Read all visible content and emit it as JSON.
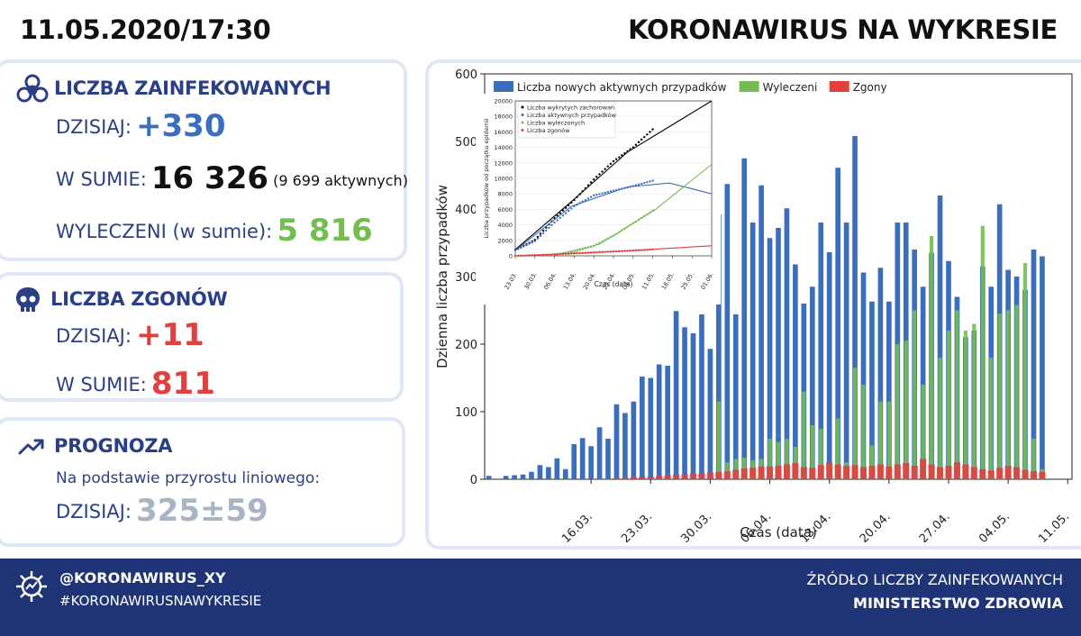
{
  "header": {
    "date": "11.05.2020/17:30",
    "title": "KORONAWIRUS NA WYKRESIE"
  },
  "infected": {
    "title": "LICZBA ZAINFEKOWANYCH",
    "today_label": "DZISIAJ:",
    "today_value": "+330",
    "total_label": "W SUMIE:",
    "total_value": "16 326",
    "active_note": "(9 699 aktywnych)",
    "recovered_label": "WYLECZENI (w sumie):",
    "recovered_value": "5 816"
  },
  "deaths": {
    "title": "LICZBA ZGONÓW",
    "today_label": "DZISIAJ:",
    "today_value": "+11",
    "total_label": "W SUMIE:",
    "total_value": "811"
  },
  "forecast": {
    "title": "PROGNOZA",
    "subtitle": "Na podstawie przyrostu liniowego:",
    "today_label": "DZISIAJ:",
    "today_value": "325±59"
  },
  "footer": {
    "handle": "@KORONAWIRUS_XY",
    "hashtag": "#KORONAWIRUSNAWYKRESIE",
    "source_label": "ŹRÓDŁO LICZBY ZAINFEKOWANYCH",
    "source_name": "MINISTERSTWO ZDROWIA"
  },
  "colors": {
    "navy": "#2a3f86",
    "blue": "#3c6ebe",
    "green": "#74bd52",
    "red": "#e0413e",
    "grey": "#a8b5c6",
    "footer_bg": "#1f3476",
    "card_border": "#dfe7f6"
  },
  "icons": {
    "infected": "biohazard-icon",
    "deaths": "skull-icon",
    "forecast": "trend-up-icon",
    "footer": "virus-icon"
  },
  "chart_data": [
    {
      "type": "bar",
      "xlabel": "Czas (data)",
      "ylabel": "Dzienna liczba przypadków",
      "ylim": [
        0,
        600
      ],
      "yticks": [
        0,
        100,
        200,
        300,
        400,
        500,
        600
      ],
      "x_start": "2020-03-04",
      "x_end": "2020-05-11",
      "xticks": [
        "16.03.",
        "23.03.",
        "30.03.",
        "06.04.",
        "13.04.",
        "20.04.",
        "27.04.",
        "04.05.",
        "11.05."
      ],
      "legend_position": "top",
      "series": [
        {
          "name": "Liczba nowych aktywnych przypadków",
          "color": "#3c6ebe",
          "values": [
            5,
            0,
            5,
            6,
            7,
            11,
            21,
            18,
            31,
            15,
            52,
            61,
            49,
            77,
            60,
            111,
            98,
            115,
            152,
            150,
            170,
            168,
            249,
            225,
            216,
            244,
            193,
            392,
            437,
            244,
            475,
            380,
            435,
            357,
            372,
            401,
            318,
            260,
            285,
            380,
            336,
            461,
            380,
            508,
            306,
            263,
            313,
            263,
            380,
            380,
            340,
            285,
            335,
            420,
            323,
            270,
            210,
            220,
            315,
            285,
            407,
            310,
            300,
            280,
            340,
            330
          ]
        },
        {
          "name": "Wyleczeni",
          "color": "#74bd52",
          "values": [
            0,
            0,
            0,
            0,
            0,
            0,
            0,
            0,
            0,
            0,
            0,
            0,
            0,
            0,
            0,
            0,
            0,
            0,
            0,
            0,
            0,
            0,
            0,
            0,
            0,
            0,
            0,
            115,
            25,
            30,
            32,
            28,
            30,
            60,
            55,
            60,
            48,
            130,
            80,
            75,
            20,
            90,
            25,
            165,
            140,
            50,
            115,
            115,
            200,
            205,
            250,
            140,
            360,
            180,
            220,
            250,
            220,
            230,
            375,
            180,
            245,
            250,
            258,
            320,
            60,
            15
          ]
        },
        {
          "name": "Zgony",
          "color": "#e0413e",
          "values": [
            0,
            0,
            0,
            0,
            0,
            0,
            0,
            0,
            0,
            0,
            0,
            0,
            1,
            1,
            1,
            2,
            2,
            3,
            4,
            4,
            5,
            6,
            7,
            7,
            8,
            9,
            10,
            11,
            12,
            14,
            16,
            17,
            19,
            19,
            20,
            22,
            24,
            18,
            17,
            21,
            25,
            22,
            20,
            21,
            18,
            20,
            22,
            19,
            22,
            24,
            20,
            30,
            22,
            18,
            20,
            25,
            22,
            18,
            15,
            13,
            17,
            20,
            18,
            14,
            12,
            11
          ]
        }
      ]
    },
    {
      "type": "line",
      "inset": true,
      "xlabel": "Czas (data)",
      "ylabel": "Liczba przypadków od początku epidemii",
      "ylim": [
        0,
        20000
      ],
      "yticks": [
        0,
        2000,
        4000,
        6000,
        8000,
        10000,
        12000,
        14000,
        16000,
        18000,
        20000
      ],
      "xticks": [
        "23.03.",
        "30.03.",
        "06.04.",
        "13.04.",
        "20.04.",
        "27.04.",
        "04.05.",
        "11.05.",
        "18.05.",
        "25.05.",
        "01.06."
      ],
      "x_days_from": "2020-03-23",
      "legend": [
        "Liczba wykrytych zachorowań",
        "Liczba aktywnych przypadków",
        "Liczba wyleczonych",
        "Liczba zgonów"
      ],
      "series": [
        {
          "name": "Liczba wykrytych zachorowań",
          "color": "#000000",
          "points": [
            [
              0,
              749
            ],
            [
              7,
              2055
            ],
            [
              14,
              4848
            ],
            [
              21,
              7202
            ],
            [
              28,
              9856
            ],
            [
              35,
              12218
            ],
            [
              42,
              14006
            ],
            [
              49,
              16326
            ]
          ],
          "fit": [
            [
              0,
              800
            ],
            [
              20,
              7000
            ],
            [
              40,
              13400
            ],
            [
              70,
              20000
            ]
          ]
        },
        {
          "name": "Liczba aktywnych przypadków",
          "color": "#3c6ebe",
          "points": [
            [
              0,
              700
            ],
            [
              7,
              1900
            ],
            [
              14,
              4300
            ],
            [
              21,
              6400
            ],
            [
              28,
              7800
            ],
            [
              35,
              8400
            ],
            [
              42,
              9000
            ],
            [
              49,
              9699
            ]
          ],
          "fit": [
            [
              0,
              700
            ],
            [
              20,
              6400
            ],
            [
              40,
              8900
            ],
            [
              55,
              9400
            ],
            [
              70,
              8000
            ]
          ]
        },
        {
          "name": "Liczba wyleczonych",
          "color": "#74bd52",
          "points": [
            [
              14,
              200
            ],
            [
              21,
              500
            ],
            [
              28,
              1300
            ],
            [
              35,
              2600
            ],
            [
              42,
              4200
            ],
            [
              49,
              5816
            ]
          ],
          "fit": [
            [
              14,
              100
            ],
            [
              30,
              1500
            ],
            [
              50,
              6000
            ],
            [
              70,
              11800
            ]
          ]
        },
        {
          "name": "Liczba zgonów",
          "color": "#e0413e",
          "points": [
            [
              0,
              8
            ],
            [
              14,
              164
            ],
            [
              28,
              445
            ],
            [
              42,
              678
            ],
            [
              49,
              811
            ]
          ],
          "fit": [
            [
              0,
              0
            ],
            [
              35,
              550
            ],
            [
              70,
              1300
            ]
          ]
        }
      ]
    }
  ]
}
